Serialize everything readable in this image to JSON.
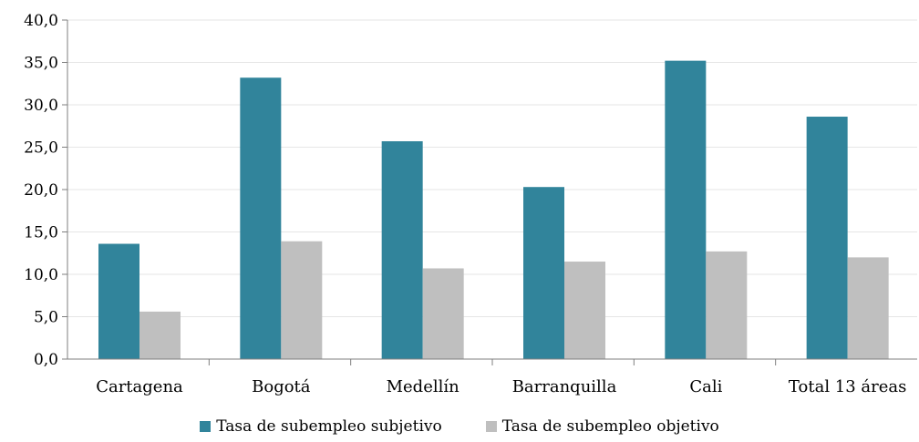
{
  "chart_data": {
    "type": "bar",
    "categories": [
      "Cartagena",
      "Bogotá",
      "Medellín",
      "Barranquilla",
      "Cali",
      "Total 13 áreas"
    ],
    "series": [
      {
        "name": "Tasa de subempleo subjetivo",
        "values": [
          13.6,
          33.2,
          25.7,
          20.3,
          35.2,
          28.6
        ],
        "color": "#31849B"
      },
      {
        "name": "Tasa de subempleo objetivo",
        "values": [
          5.6,
          13.9,
          10.7,
          11.5,
          12.7,
          12.0
        ],
        "color": "#BFBFBF"
      }
    ],
    "ylim": [
      0,
      40
    ],
    "yticks": [
      "0,0",
      "5,0",
      "10,0",
      "15,0",
      "20,0",
      "25,0",
      "30,0",
      "35,0",
      "40,0"
    ],
    "grid": true,
    "legend_position": "bottom",
    "title": "",
    "xlabel": "",
    "ylabel": ""
  }
}
